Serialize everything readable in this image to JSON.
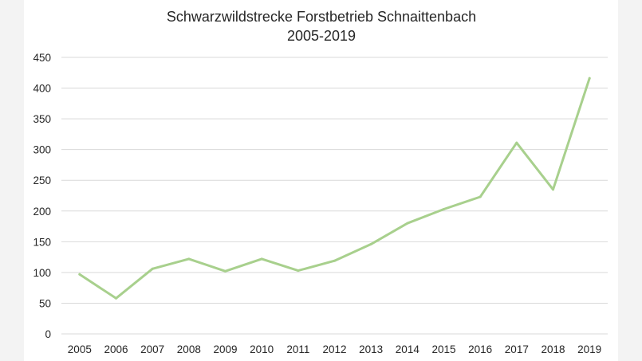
{
  "chart_data": {
    "type": "line",
    "title": [
      "Schwarzwildstrecke Forstbetrieb Schnaittenbach",
      "2005-2019"
    ],
    "xlabel": "",
    "ylabel": "",
    "categories": [
      "2005",
      "2006",
      "2007",
      "2008",
      "2009",
      "2010",
      "2011",
      "2012",
      "2013",
      "2014",
      "2015",
      "2016",
      "2017",
      "2018",
      "2019"
    ],
    "series": [
      {
        "name": "Schwarzwildstrecke",
        "values": [
          97,
          58,
          106,
          122,
          102,
          122,
          103,
          119,
          146,
          180,
          203,
          223,
          311,
          235,
          416
        ]
      }
    ],
    "ylim": [
      0,
      450
    ],
    "yticks": [
      "0",
      "50",
      "100",
      "150",
      "200",
      "250",
      "300",
      "350",
      "400",
      "450"
    ],
    "grid": true,
    "line_color": "#a8d08d",
    "grid_color": "#d9d9d9"
  }
}
